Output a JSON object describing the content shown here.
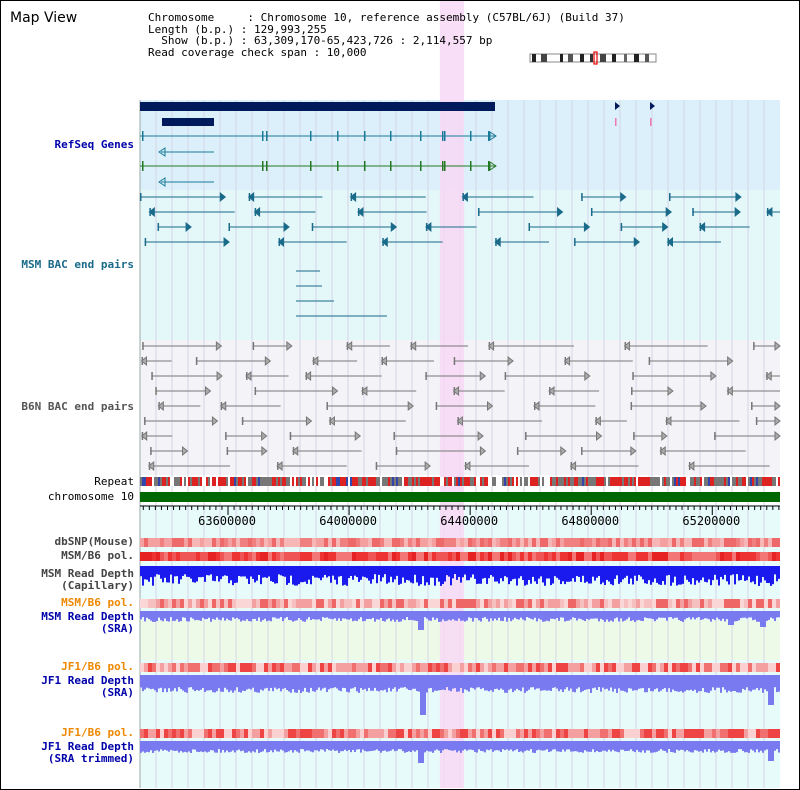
{
  "title": "Map View",
  "header": {
    "chromosome_line": "Chromosome     : Chromosome 10, reference assembly (C57BL/6J) (Build 37)",
    "length_line": "Length (b.p.) : 129,993,255",
    "show_line": "  Show (b.p.) : 63,309,170-65,423,726 : 2,114,557 bp",
    "coverage_line": "Read coverage check span : 10,000"
  },
  "tracks": {
    "refseq": "RefSeq Genes",
    "msm_bac": "MSM BAC end pairs",
    "b6n_bac": "B6N BAC end pairs",
    "repeat": "Repeat",
    "chromosome": "chromosome 10",
    "dbsnp": "dbSNP(Mouse)",
    "msm_b6_pol_1": "MSM/B6 pol.",
    "msm_depth_cap": "MSM Read Depth\n(Capillary)",
    "msm_b6_pol_2": "MSM/B6 pol.",
    "msm_depth_sra": "MSM Read Depth\n(SRA)",
    "jf1_b6_pol_1": "JF1/B6 pol.",
    "jf1_depth_sra": "JF1 Read Depth\n(SRA)",
    "jf1_b6_pol_2": "JF1/B6 pol.",
    "jf1_depth_trim": "JF1 Read Depth\n(SRA trimmed)"
  },
  "axis": {
    "ticks": [
      {
        "label": "63600000",
        "value": 63600000
      },
      {
        "label": "64000000",
        "value": 64000000
      },
      {
        "label": "64400000",
        "value": 64400000
      },
      {
        "label": "64800000",
        "value": 64800000
      },
      {
        "label": "65200000",
        "value": 65200000
      }
    ],
    "start": 63309170,
    "end": 65423726
  },
  "highlight": {
    "start": 64300000,
    "end": 64380000
  },
  "colors": {
    "refseq_bg": "#dbf0fa",
    "msm_bg": "#e4f7f9",
    "b6n_bg": "#f3f3f8",
    "refseq_gene": "#001a5c",
    "msm_feature": "#1a6a8a",
    "b6n_feature": "#777777",
    "chromosome": "#006600",
    "highlight": "#f7d8f4",
    "depth_cap": "#1a1aee",
    "depth_sra": "#7a7af0",
    "pol": "#ee2222",
    "label_blue": "#0000aa",
    "label_orange": "#ee8800"
  }
}
